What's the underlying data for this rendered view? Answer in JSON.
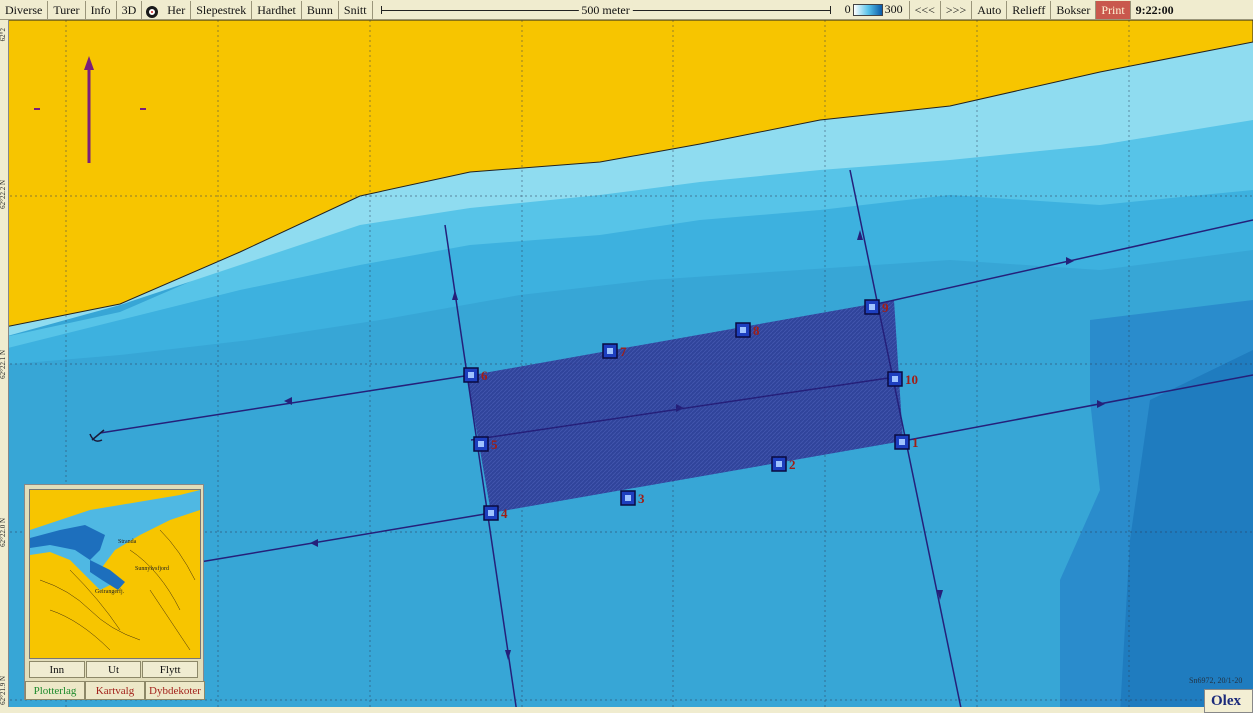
{
  "toolbar": {
    "left_buttons": [
      "Diverse",
      "Turer",
      "Info",
      "3D"
    ],
    "target_icon": "target-icon",
    "right_of_target": [
      "Her",
      "Slepestrek",
      "Hardhet",
      "Bunn",
      "Snitt"
    ],
    "scale_label": "500 meter",
    "depth_min": "0",
    "depth_max": "300",
    "nav_buttons": [
      "<<<",
      ">>>",
      "Auto",
      "Relieff",
      "Bokser"
    ],
    "print_label": "Print",
    "time": "9:22:00"
  },
  "latitudes": [
    "62°2",
    "62°22.2 N",
    "62°22.1 N",
    "62°22.0 N",
    "62°21.9 N"
  ],
  "waypoints": [
    "1",
    "2",
    "3",
    "4",
    "5",
    "6",
    "7",
    "8",
    "9",
    "10"
  ],
  "inset": {
    "labels": [
      "Stranda",
      "Sunnylvsfjord",
      "Geirangerfj."
    ],
    "buttons": [
      "Inn",
      "Ut",
      "Flytt"
    ],
    "tabs": [
      "Plotterlag",
      "Kartvalg",
      "Dybdekoter"
    ]
  },
  "chart_info": "Sn6972, 20/1-20",
  "brand": "Olex",
  "colors": {
    "land": "#f7c500",
    "shallow": "#7fd8ef",
    "mid": "#2a9bd2",
    "deep": "#1b7fc0",
    "track": "#25207a",
    "area": "#2c2f8a",
    "label": "#a01e16",
    "print": "#c9584d"
  }
}
